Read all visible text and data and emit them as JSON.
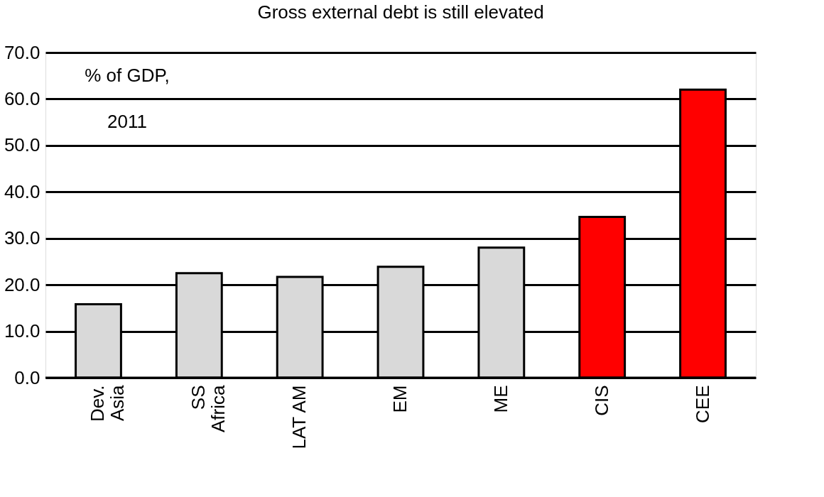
{
  "chart_data": {
    "type": "bar",
    "title": "Gross external debt is still elevated",
    "categories": [
      "Dev.\nAsia",
      "SS\nAfrica",
      "LAT AM",
      "EM",
      "ME",
      "CIS",
      "CEE"
    ],
    "values": [
      15.8,
      22.5,
      21.7,
      23.9,
      28.0,
      34.6,
      62.0
    ],
    "colors": [
      "#d9d9d9",
      "#d9d9d9",
      "#d9d9d9",
      "#d9d9d9",
      "#d9d9d9",
      "#ff0000",
      "#ff0000"
    ],
    "ylim": [
      0,
      70
    ],
    "yticks": [
      {
        "value": 0,
        "label": "0.0"
      },
      {
        "value": 10,
        "label": "10.0"
      },
      {
        "value": 20,
        "label": "20.0"
      },
      {
        "value": 30,
        "label": "30.0"
      },
      {
        "value": 40,
        "label": "40.0"
      },
      {
        "value": 50,
        "label": "50.0"
      },
      {
        "value": 60,
        "label": "60.0"
      },
      {
        "value": 70,
        "label": "70.0"
      }
    ],
    "grid": "y",
    "annotations": [
      "% of GDP,\n2011"
    ]
  }
}
